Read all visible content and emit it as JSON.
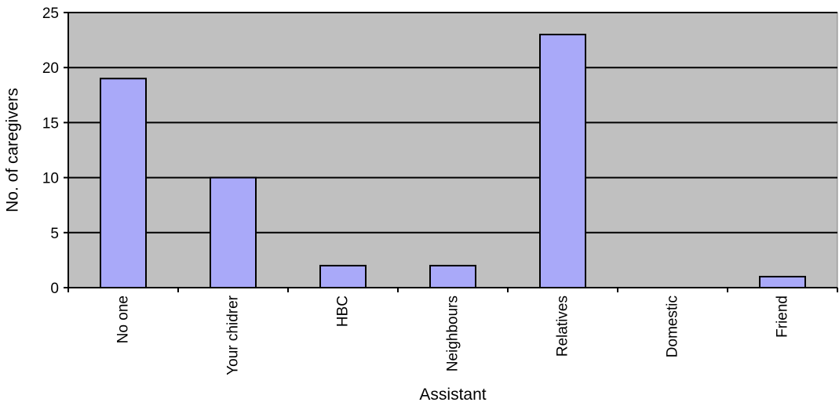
{
  "chart_data": {
    "type": "bar",
    "title": "",
    "xlabel": "Assistant",
    "ylabel": "No. of caregivers",
    "categories": [
      "No one",
      "Your chidrer",
      "HBC",
      "Neighbours",
      "Relatives",
      "Domestic",
      "Friend"
    ],
    "values": [
      19,
      10,
      2,
      2,
      23,
      0,
      1
    ],
    "ylim": [
      0,
      25
    ],
    "yticks": [
      0,
      5,
      10,
      15,
      20,
      25
    ],
    "grid": true,
    "legend": "none",
    "colors": {
      "plot_background": "#c0c0c0",
      "bar_fill": "#a9a9f9",
      "bar_stroke": "#000000",
      "grid": "#000000"
    }
  }
}
